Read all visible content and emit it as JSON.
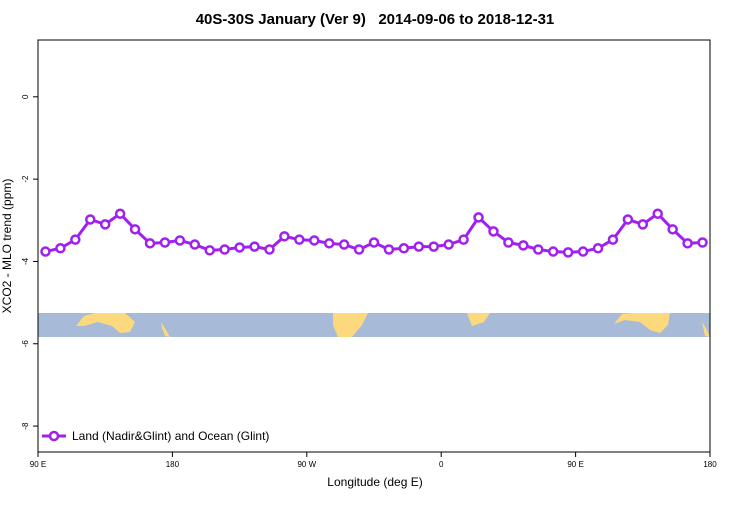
{
  "chart_data": {
    "type": "line",
    "title": "40S-30S January (Ver 9)   2014-09-06 to 2018-12-31",
    "x_label": "Longitude (deg E)",
    "y_label": "XCO2 - MLO trend (ppm)",
    "x": [
      95,
      105,
      115,
      125,
      135,
      145,
      155,
      165,
      175,
      185,
      195,
      205,
      215,
      225,
      235,
      245,
      255,
      265,
      275,
      285,
      295,
      305,
      315,
      325,
      335,
      345,
      355,
      365,
      375,
      385,
      395,
      405,
      415,
      425,
      435,
      445,
      455,
      465,
      475,
      485,
      495,
      505,
      515,
      525,
      535
    ],
    "series": [
      {
        "name": "Land (Nadir&Glint) and Ocean (Glint)",
        "color": "#a020f0",
        "values": [
          -3.76,
          -3.68,
          -3.47,
          -2.98,
          -3.1,
          -2.84,
          -3.22,
          -3.56,
          -3.54,
          -3.49,
          -3.59,
          -3.73,
          -3.71,
          -3.66,
          -3.64,
          -3.71,
          -3.39,
          -3.47,
          -3.49,
          -3.56,
          -3.59,
          -3.71,
          -3.54,
          -3.71,
          -3.68,
          -3.64,
          -3.64,
          -3.59,
          -3.47,
          -2.93,
          -3.27,
          -3.54,
          -3.61,
          -3.71,
          -3.76,
          -3.78,
          -3.76,
          -3.68,
          -3.47,
          -2.98,
          -3.1,
          -2.84,
          -3.22,
          -3.56,
          -3.54
        ]
      }
    ],
    "xlim": [
      90,
      540
    ],
    "xticks": [
      {
        "value": 90,
        "label": "90 E"
      },
      180,
      {
        "value": 270,
        "label": "90 W"
      },
      {
        "value": 360,
        "label": "0"
      },
      {
        "value": 450,
        "label": "90 E"
      },
      {
        "value": 540,
        "label": "180"
      }
    ],
    "ylim": [
      -8.63,
      1.38
    ],
    "yticks": [
      0,
      -2,
      -4,
      -6,
      -8
    ],
    "legend": "lower left"
  }
}
